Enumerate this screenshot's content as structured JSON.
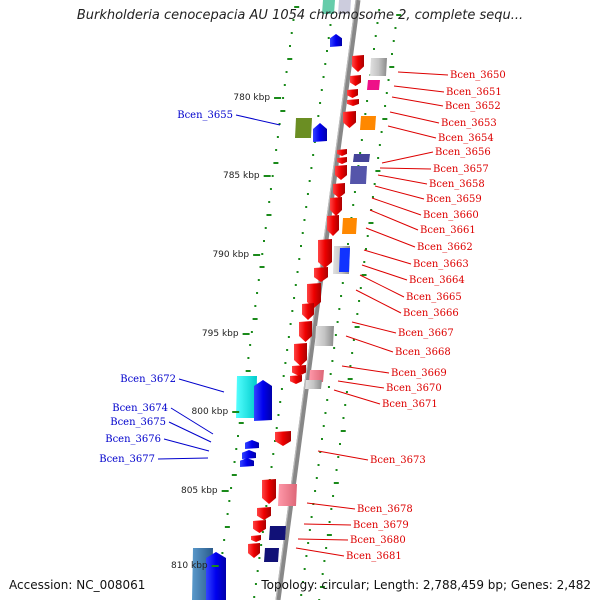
{
  "title": "Burkholderia cenocepacia AU 1054 chromosome 2, complete sequ...",
  "footer": {
    "accession": "Accession: NC_008061",
    "topology": "Topology: circular; Length: 2,788,459 bp; Genes: 2,482"
  },
  "colors": {
    "backbone": "#888888",
    "tick": "#1a8a1a",
    "forward_label": "#0000cc",
    "reverse_label": "#dd0000"
  },
  "kbp_marks": [
    "780 kbp",
    "785 kbp",
    "790 kbp",
    "795 kbp",
    "800 kbp",
    "805 kbp",
    "810 kbp"
  ],
  "forward_genes": [
    "Bcen_3655",
    "Bcen_3672",
    "Bcen_3674",
    "Bcen_3675",
    "Bcen_3676",
    "Bcen_3677"
  ],
  "reverse_genes": [
    "Bcen_3650",
    "Bcen_3651",
    "Bcen_3652",
    "Bcen_3653",
    "Bcen_3654",
    "Bcen_3656",
    "Bcen_3657",
    "Bcen_3658",
    "Bcen_3659",
    "Bcen_3660",
    "Bcen_3661",
    "Bcen_3662",
    "Bcen_3663",
    "Bcen_3664",
    "Bcen_3665",
    "Bcen_3666",
    "Bcen_3667",
    "Bcen_3668",
    "Bcen_3669",
    "Bcen_3670",
    "Bcen_3671",
    "Bcen_3673",
    "Bcen_3678",
    "Bcen_3679",
    "Bcen_3680",
    "Bcen_3681"
  ]
}
